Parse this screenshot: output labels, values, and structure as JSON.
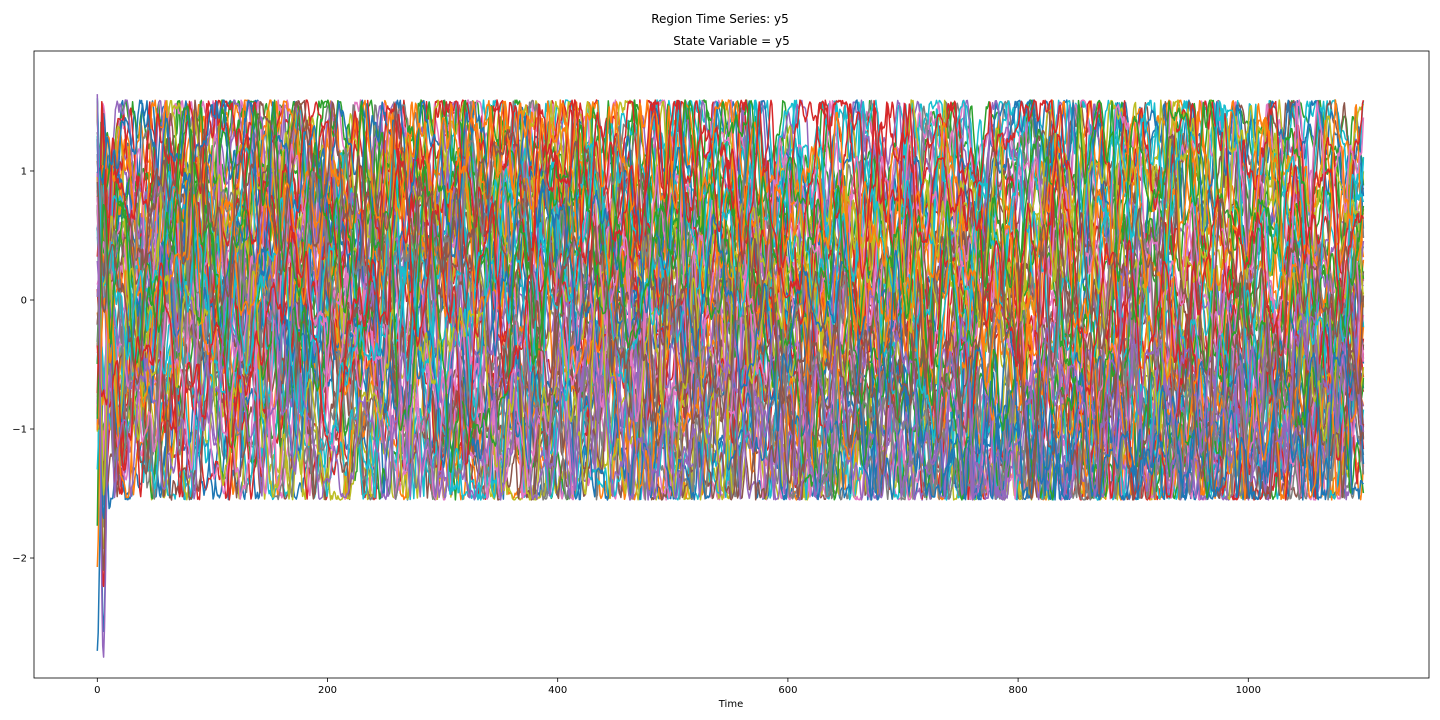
{
  "figure": {
    "suptitle": "Region Time Series: y5",
    "axes_title": "State Variable = y5"
  },
  "chart_data": {
    "type": "line",
    "title": "State Variable = y5",
    "suptitle": "Region Time Series: y5",
    "xlabel": "Time",
    "ylabel": "",
    "xlim": [
      -55,
      1157
    ],
    "ylim": [
      -2.93,
      1.93
    ],
    "xticks": [
      0,
      200,
      400,
      600,
      800,
      1000
    ],
    "xtick_labels": [
      "0",
      "200",
      "400",
      "600",
      "800",
      "1000"
    ],
    "yticks": [
      -2,
      -1,
      0,
      1
    ],
    "ytick_labels": [
      "−2",
      "−1",
      "0",
      "1"
    ],
    "grid": false,
    "legend": "none",
    "n_series": 76,
    "time_range": [
      0,
      1100
    ],
    "steady_state_range": [
      -1.55,
      1.55
    ],
    "initial_transient_minimum": -2.72,
    "colors": [
      "#1f77b4",
      "#ff7f0e",
      "#2ca02c",
      "#d62728",
      "#9467bd",
      "#8c564b",
      "#e377c2",
      "#7f7f7f",
      "#bcbd22",
      "#17becf"
    ]
  }
}
